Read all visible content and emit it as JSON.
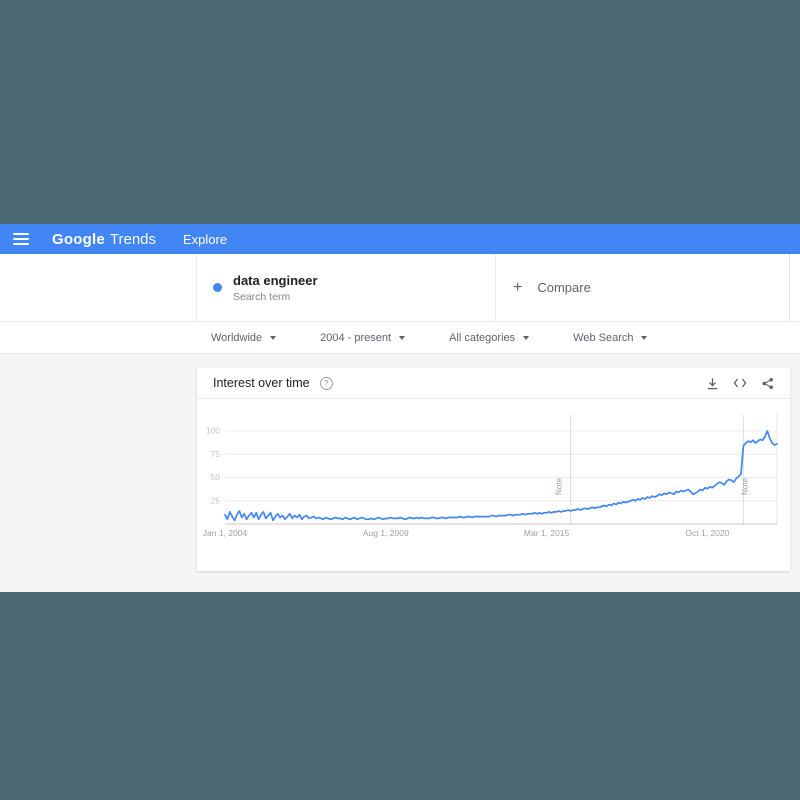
{
  "colors": {
    "page_bg": "#4b6972",
    "brand_blue": "#4285f4",
    "content_bg": "#f5f5f5",
    "line": "#4285f4"
  },
  "topbar": {
    "logo_google": "Google",
    "logo_trends": "Trends",
    "nav_explore": "Explore"
  },
  "search_card": {
    "term": "data engineer",
    "term_type": "Search term",
    "compare_plus": "+",
    "compare_label": "Compare"
  },
  "filters": {
    "region": "Worldwide",
    "time": "2004 - present",
    "category": "All categories",
    "search_type": "Web Search"
  },
  "chart_card": {
    "title": "Interest over time",
    "help_glyph": "?"
  },
  "chart_data": {
    "type": "line",
    "title": "Interest over time",
    "x_unit": "month",
    "x_range": [
      "Jan 2004",
      "Mar 2023"
    ],
    "ylim": [
      0,
      100
    ],
    "y_ticks": [
      25,
      50,
      75,
      100
    ],
    "grid": true,
    "x_tick_labels": [
      {
        "label": "Jan 1, 2004",
        "month_index": 0
      },
      {
        "label": "Aug 1, 2009",
        "month_index": 67
      },
      {
        "label": "Mar 1, 2015",
        "month_index": 134
      },
      {
        "label": "Oct 1, 2020",
        "month_index": 201
      }
    ],
    "notes": [
      {
        "label": "Note",
        "month_index": 144,
        "label_offset": -9
      },
      {
        "label": "Note",
        "month_index": 216,
        "label_offset": 4
      }
    ],
    "series": [
      {
        "name": "data engineer",
        "color": "#4285f4",
        "values": [
          10,
          5,
          13,
          8,
          4,
          10,
          14,
          7,
          11,
          5,
          9,
          12,
          7,
          12,
          5,
          10,
          13,
          6,
          9,
          12,
          4,
          8,
          11,
          7,
          9,
          5,
          8,
          11,
          6,
          9,
          7,
          10,
          5,
          8,
          9,
          6,
          7,
          8,
          6,
          7,
          6,
          5,
          7,
          6,
          5,
          6,
          7,
          6,
          6,
          5,
          7,
          6,
          5,
          6,
          7,
          5,
          6,
          7,
          6,
          5,
          5,
          6,
          5,
          6,
          7,
          6,
          5,
          6,
          6,
          7,
          6,
          6,
          6,
          7,
          6,
          5,
          6,
          7,
          6,
          6,
          7,
          6,
          7,
          6,
          6,
          6,
          7,
          7,
          6,
          6,
          7,
          7,
          6,
          7,
          7,
          7,
          7,
          7,
          8,
          7,
          7,
          8,
          8,
          7,
          8,
          8,
          8,
          8,
          8,
          8,
          8,
          9,
          9,
          8,
          9,
          9,
          9,
          9,
          10,
          10,
          9,
          10,
          10,
          10,
          11,
          10,
          11,
          11,
          11,
          12,
          11,
          12,
          11,
          12,
          12,
          13,
          12,
          13,
          13,
          14,
          13,
          14,
          14,
          15,
          14,
          15,
          15,
          16,
          15,
          16,
          17,
          16,
          17,
          18,
          17,
          18,
          18,
          19,
          20,
          19,
          21,
          20,
          22,
          21,
          23,
          22,
          24,
          23,
          24,
          25,
          26,
          25,
          27,
          26,
          28,
          27,
          29,
          28,
          30,
          29,
          30,
          32,
          31,
          33,
          32,
          34,
          33,
          32,
          35,
          34,
          36,
          35,
          36,
          37,
          35,
          32,
          33,
          35,
          37,
          36,
          39,
          38,
          40,
          39,
          41,
          43,
          45,
          44,
          42,
          46,
          48,
          47,
          45,
          49,
          51,
          54,
          84,
          87,
          89,
          88,
          90,
          87,
          89,
          91,
          90,
          94,
          100,
          92,
          87,
          85,
          86
        ]
      }
    ]
  }
}
